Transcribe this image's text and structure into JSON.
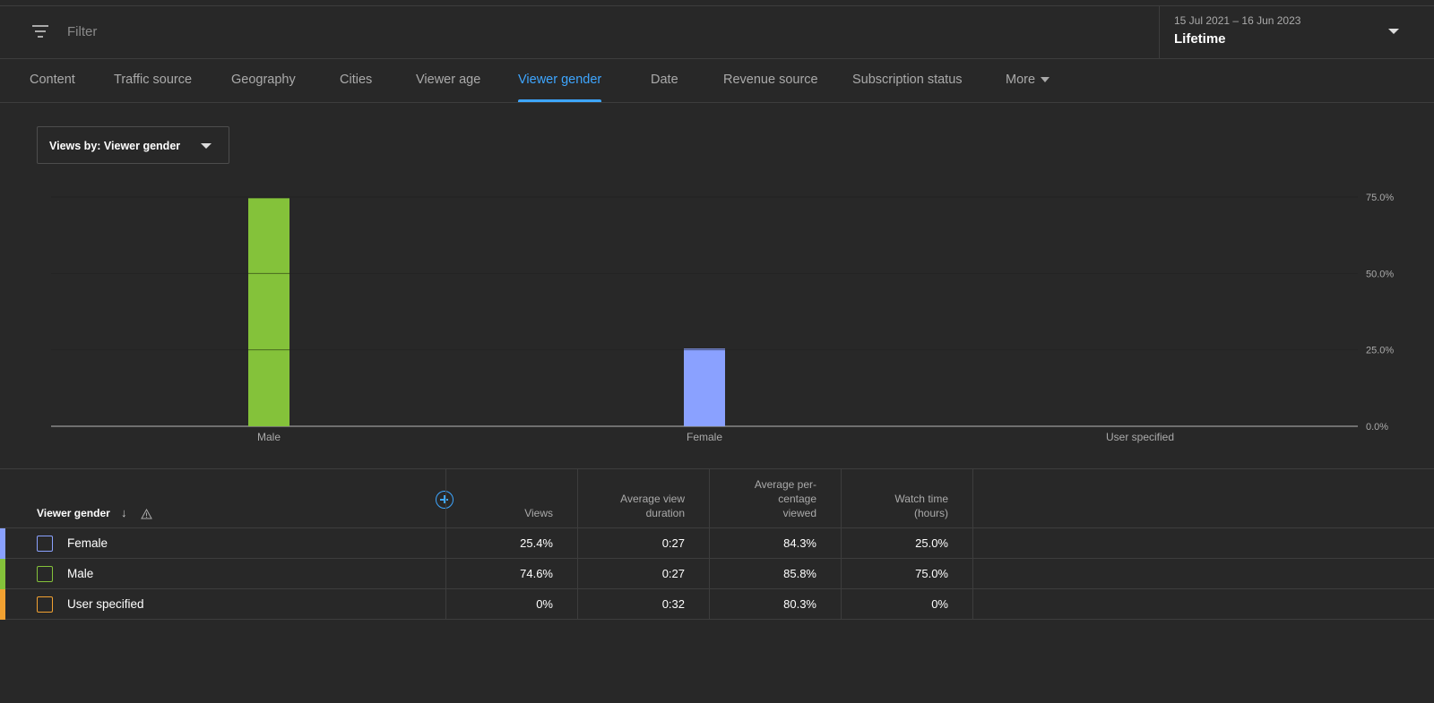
{
  "filter": {
    "placeholder": "Filter",
    "icon": "filter-icon"
  },
  "date": {
    "range": "15 Jul 2021 – 16 Jun 2023",
    "label": "Lifetime"
  },
  "tabs": [
    {
      "label": "Content"
    },
    {
      "label": "Traffic source"
    },
    {
      "label": "Geography"
    },
    {
      "label": "Cities"
    },
    {
      "label": "Viewer age"
    },
    {
      "label": "Viewer gender",
      "active": true
    },
    {
      "label": "Date"
    },
    {
      "label": "Revenue source"
    },
    {
      "label": "Subscription status"
    },
    {
      "label": "More"
    }
  ],
  "dropdown": {
    "label": "Views by: Viewer gender"
  },
  "colors": {
    "accent": "#3ea6ff",
    "male": "#84c23a",
    "female": "#8aa1ff",
    "user_specified": "#f2a131"
  },
  "chart_data": {
    "type": "bar",
    "categories": [
      "Male",
      "Female",
      "User specified"
    ],
    "values": [
      74.6,
      25.4,
      0
    ],
    "ylim": [
      0,
      75
    ],
    "yticks": [
      "0.0%",
      "25.0%",
      "50.0%",
      "75.0%"
    ],
    "ytick_values": [
      0,
      25,
      50,
      75
    ],
    "colors": [
      "#84c23a",
      "#8aa1ff",
      "#f2a131"
    ],
    "grid": true
  },
  "table": {
    "first_header": "Viewer gender",
    "headers": [
      [
        "Views"
      ],
      [
        "Average view",
        "duration"
      ],
      [
        "Average per-",
        "centage",
        "viewed"
      ],
      [
        "Watch time",
        "(hours)"
      ]
    ],
    "rows": [
      {
        "name": "Female",
        "color": "#8aa1ff",
        "cells": [
          "25.4%",
          "0:27",
          "84.3%",
          "25.0%"
        ]
      },
      {
        "name": "Male",
        "color": "#84c23a",
        "cells": [
          "74.6%",
          "0:27",
          "85.8%",
          "75.0%"
        ]
      },
      {
        "name": "User specified",
        "color": "#f2a131",
        "cells": [
          "0%",
          "0:32",
          "80.3%",
          "0%"
        ]
      }
    ]
  }
}
